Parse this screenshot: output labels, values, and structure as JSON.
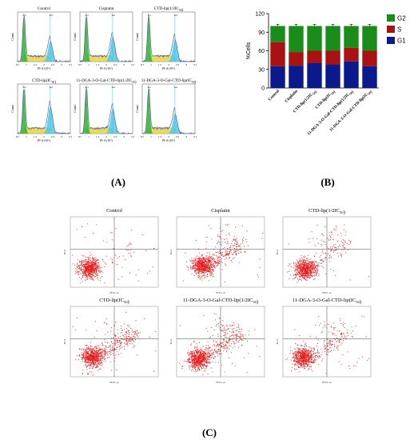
{
  "panel_labels": {
    "a": "(A)",
    "b": "(B)",
    "c": "(C)"
  },
  "histogram_panels": [
    {
      "title": "Control"
    },
    {
      "title": "Cisplatin"
    },
    {
      "title": "CTD-lip(1/2IC50)"
    },
    {
      "title": "CTD-lip(IC50)"
    },
    {
      "title": "11-DGA-3-O-Gal-CTD-lip(1/2IC50)"
    },
    {
      "title": "11-DGA-3-O-Gal-CTD-lip(IC50)"
    }
  ],
  "histogram_axis": {
    "xlabel": "PI-A (10⁵)",
    "ylabel": "Count",
    "xticks": [
      "0.7",
      "1",
      "1.5",
      "2",
      "2.5",
      "3",
      "3.1"
    ],
    "peak_labels": [
      "G1",
      "G2"
    ]
  },
  "scatter_panels": [
    {
      "title": "Control"
    },
    {
      "title": "Cisplatin"
    },
    {
      "title": "CTD-lip(1/2IC50)"
    },
    {
      "title": "CTD-lip(IC50)"
    },
    {
      "title": "11-DGA-3-O-Gal-CTD-lip(1/2IC50)"
    },
    {
      "title": "11-DGA-3-O-Gal-CTD-lip(IC50)"
    }
  ],
  "scatter_axis": {
    "xlabel": "FITC-A",
    "ylabel": "PI-A"
  },
  "colors": {
    "g1": "#0a1a8c",
    "s": "#a81212",
    "g2": "#1a8c1a",
    "flow_dots": "#e81818",
    "fit_line": "#40d0e0"
  },
  "chart_data": {
    "type": "bar",
    "stacked": true,
    "categories": [
      "Control",
      "Cisplatin",
      "CTD-lip(1/2IC50)",
      "CTD-lip(IC50)",
      "11-DGA-3-O-Gal-CTD-lip(1/2IC50)",
      "11-DGA-3-O-Gal-CTD-lip(IC50)"
    ],
    "series": [
      {
        "name": "G1",
        "values": [
          35,
          36,
          40,
          38,
          43,
          35
        ]
      },
      {
        "name": "S",
        "values": [
          39,
          22,
          20,
          22,
          22,
          25
        ]
      },
      {
        "name": "G2",
        "values": [
          26,
          42,
          40,
          40,
          35,
          40
        ]
      }
    ],
    "ylabel": "%Cells",
    "ylim": [
      0,
      120
    ],
    "yticks": [
      0,
      30,
      60,
      90,
      120
    ],
    "legend": "right"
  }
}
